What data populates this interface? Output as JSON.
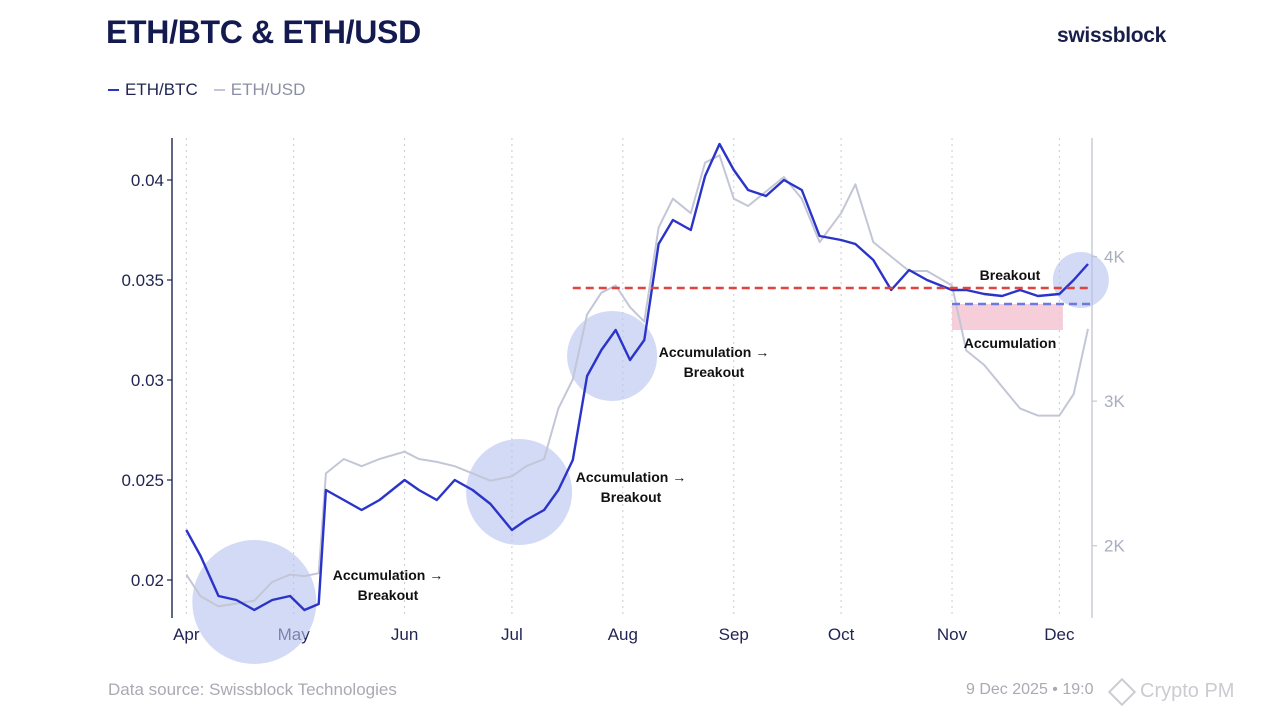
{
  "header": {
    "title": "ETH/BTC & ETH/USD",
    "brand": "swissblock"
  },
  "footer": {
    "source": "Data source: Swissblock Technologies",
    "date": "9 Dec 2025 • 19:0",
    "watermark": "Crypto PM"
  },
  "colors": {
    "eth_btc": "#2b34c8",
    "eth_usd": "#c3c6d6",
    "accumulation_zone": "#f5c6d2",
    "support_line": "#e0443f",
    "breakout_line": "#6e78e0",
    "highlight_circle": "#b6c2ef",
    "text": "#1f2452"
  },
  "chart_data": {
    "type": "line",
    "title": "ETH/BTC & ETH/USD",
    "x_axis": {
      "ticks": [
        "Apr",
        "May",
        "Jun",
        "Jul",
        "Aug",
        "Sep",
        "Oct",
        "Nov",
        "Dec"
      ],
      "range": [
        "2025-04-01",
        "2025-12-09"
      ]
    },
    "y_axis_left": {
      "series": "ETH/BTC",
      "ticks": [
        "0.02",
        "0.025",
        "0.03",
        "0.035",
        "0.04"
      ],
      "range": [
        0.0181,
        0.0421
      ]
    },
    "y_axis_right": {
      "series": "ETH/USD",
      "ticks": [
        "2K",
        "3K",
        "4K"
      ],
      "range": [
        1500,
        4820
      ]
    },
    "grid": "vertical dotted at month starts",
    "legend": "top-left",
    "series": [
      {
        "name": "ETH/BTC",
        "axis": "left",
        "x": [
          "2025-04-01",
          "2025-04-05",
          "2025-04-10",
          "2025-04-15",
          "2025-04-20",
          "2025-04-25",
          "2025-04-30",
          "2025-05-04",
          "2025-05-08",
          "2025-05-10",
          "2025-05-15",
          "2025-05-20",
          "2025-05-25",
          "2025-06-01",
          "2025-06-05",
          "2025-06-10",
          "2025-06-15",
          "2025-06-20",
          "2025-06-25",
          "2025-07-01",
          "2025-07-05",
          "2025-07-10",
          "2025-07-14",
          "2025-07-18",
          "2025-07-22",
          "2025-07-26",
          "2025-07-30",
          "2025-08-03",
          "2025-08-07",
          "2025-08-11",
          "2025-08-15",
          "2025-08-20",
          "2025-08-24",
          "2025-08-28",
          "2025-09-01",
          "2025-09-05",
          "2025-09-10",
          "2025-09-15",
          "2025-09-20",
          "2025-09-25",
          "2025-10-01",
          "2025-10-05",
          "2025-10-10",
          "2025-10-15",
          "2025-10-20",
          "2025-10-25",
          "2025-11-01",
          "2025-11-05",
          "2025-11-10",
          "2025-11-15",
          "2025-11-20",
          "2025-11-25",
          "2025-12-01",
          "2025-12-05",
          "2025-12-09"
        ],
        "y": [
          0.0225,
          0.0212,
          0.0192,
          0.019,
          0.0185,
          0.019,
          0.0192,
          0.0185,
          0.0188,
          0.0245,
          0.024,
          0.0235,
          0.024,
          0.025,
          0.0245,
          0.024,
          0.025,
          0.0245,
          0.0238,
          0.0225,
          0.023,
          0.0235,
          0.0245,
          0.026,
          0.0302,
          0.0315,
          0.0325,
          0.031,
          0.032,
          0.0368,
          0.038,
          0.0375,
          0.0402,
          0.0418,
          0.0405,
          0.0395,
          0.0392,
          0.04,
          0.0395,
          0.0372,
          0.037,
          0.0368,
          0.036,
          0.0345,
          0.0355,
          0.035,
          0.0345,
          0.0345,
          0.0343,
          0.0342,
          0.0345,
          0.0342,
          0.0343,
          0.035,
          0.0358
        ]
      },
      {
        "name": "ETH/USD",
        "axis": "right",
        "x": [
          "2025-04-01",
          "2025-04-05",
          "2025-04-10",
          "2025-04-15",
          "2025-04-20",
          "2025-04-25",
          "2025-04-30",
          "2025-05-04",
          "2025-05-08",
          "2025-05-10",
          "2025-05-15",
          "2025-05-20",
          "2025-05-25",
          "2025-06-01",
          "2025-06-05",
          "2025-06-10",
          "2025-06-15",
          "2025-06-20",
          "2025-06-25",
          "2025-07-01",
          "2025-07-05",
          "2025-07-10",
          "2025-07-14",
          "2025-07-18",
          "2025-07-22",
          "2025-07-26",
          "2025-07-30",
          "2025-08-03",
          "2025-08-07",
          "2025-08-11",
          "2025-08-15",
          "2025-08-20",
          "2025-08-24",
          "2025-08-28",
          "2025-09-01",
          "2025-09-05",
          "2025-09-10",
          "2025-09-15",
          "2025-09-20",
          "2025-09-25",
          "2025-10-01",
          "2025-10-05",
          "2025-10-10",
          "2025-10-15",
          "2025-10-20",
          "2025-10-25",
          "2025-11-01",
          "2025-11-05",
          "2025-11-10",
          "2025-11-15",
          "2025-11-20",
          "2025-11-25",
          "2025-12-01",
          "2025-12-05",
          "2025-12-09"
        ],
        "y": [
          1800,
          1650,
          1580,
          1600,
          1620,
          1750,
          1800,
          1790,
          1810,
          2500,
          2600,
          2550,
          2600,
          2650,
          2600,
          2580,
          2550,
          2500,
          2450,
          2480,
          2550,
          2600,
          2950,
          3150,
          3600,
          3750,
          3800,
          3650,
          3550,
          4200,
          4400,
          4300,
          4650,
          4700,
          4400,
          4350,
          4450,
          4550,
          4400,
          4100,
          4300,
          4500,
          4100,
          4000,
          3900,
          3900,
          3800,
          3350,
          3250,
          3100,
          2950,
          2900,
          2900,
          3050,
          3500
        ]
      }
    ],
    "annotations": [
      {
        "text_lines": [
          "Accumulation →",
          "Breakout"
        ],
        "near": "2025-05-10"
      },
      {
        "text_lines": [
          "Accumulation →",
          "Breakout"
        ],
        "near": "2025-07-20"
      },
      {
        "text_lines": [
          "Accumulation →",
          "Breakout"
        ],
        "near": "2025-08-10"
      },
      {
        "text_lines": [
          "Breakout"
        ],
        "near": "2025-12-05"
      },
      {
        "text_lines": [
          "Accumulation"
        ],
        "near": "2025-11-20"
      }
    ],
    "reference_lines": [
      {
        "style": "red dashed",
        "y": 0.0346,
        "axis": "left",
        "from": "2025-07-18",
        "to": "2025-12-09"
      },
      {
        "style": "blue dashed",
        "y": 0.0338,
        "axis": "left",
        "from": "2025-11-01",
        "to": "2025-12-09"
      }
    ],
    "zones": [
      {
        "label": "Accumulation",
        "from": "2025-11-01",
        "to": "2025-12-02",
        "y_range": [
          0.0325,
          0.0338
        ]
      }
    ],
    "highlight_circles": [
      "2025-04-20",
      "2025-07-03",
      "2025-07-29",
      "2025-12-07"
    ]
  }
}
